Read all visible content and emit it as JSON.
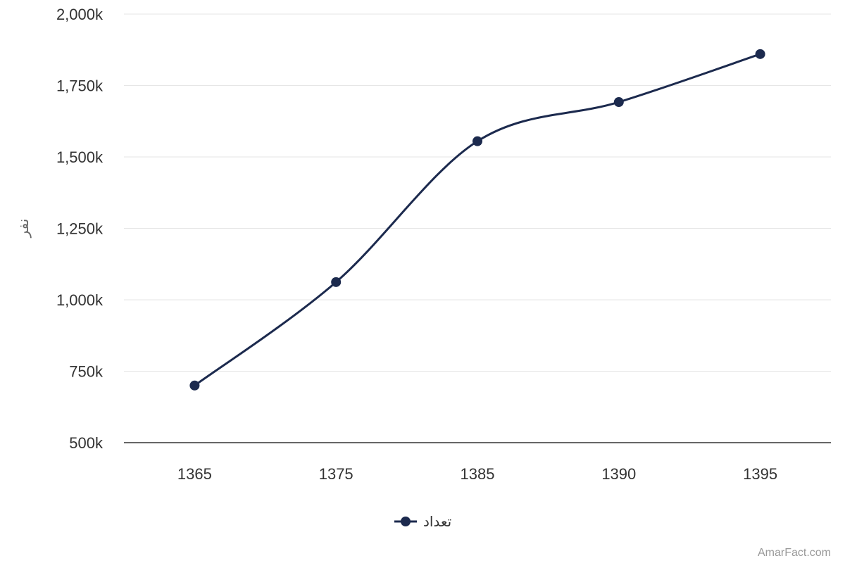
{
  "chart_data": {
    "type": "line",
    "title": "",
    "xlabel": "",
    "ylabel": "نفر",
    "categories": [
      "1365",
      "1375",
      "1385",
      "1390",
      "1395"
    ],
    "series": [
      {
        "name": "تعداد",
        "values": [
          700000,
          1062000,
          1555000,
          1692000,
          1860000
        ]
      }
    ],
    "ylim": [
      500000,
      2000000
    ],
    "y_ticks": [
      500000,
      750000,
      1000000,
      1250000,
      1500000,
      1750000,
      2000000
    ],
    "y_tick_labels": [
      "500k",
      "750k",
      "1,000k",
      "1,250k",
      "1,500k",
      "1,750k",
      "2,000k"
    ],
    "grid": true,
    "legend_position": "bottom-center",
    "series_color": "#1c2a4e",
    "grid_color": "#e6e6e6",
    "axis_color": "#333333"
  },
  "credit": "AmarFact.com"
}
